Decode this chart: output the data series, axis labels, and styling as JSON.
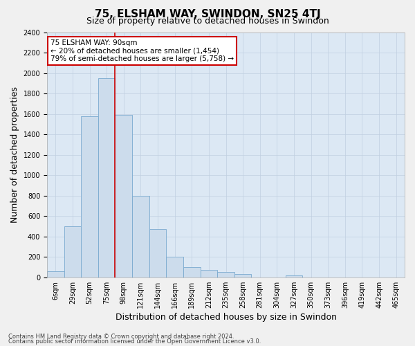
{
  "title": "75, ELSHAM WAY, SWINDON, SN25 4TJ",
  "subtitle": "Size of property relative to detached houses in Swindon",
  "xlabel": "Distribution of detached houses by size in Swindon",
  "ylabel": "Number of detached properties",
  "categories": [
    "6sqm",
    "29sqm",
    "52sqm",
    "75sqm",
    "98sqm",
    "121sqm",
    "144sqm",
    "166sqm",
    "189sqm",
    "212sqm",
    "235sqm",
    "258sqm",
    "281sqm",
    "304sqm",
    "327sqm",
    "350sqm",
    "373sqm",
    "396sqm",
    "419sqm",
    "442sqm",
    "465sqm"
  ],
  "values": [
    60,
    500,
    1580,
    1950,
    1590,
    800,
    470,
    200,
    100,
    75,
    55,
    30,
    0,
    0,
    20,
    0,
    0,
    0,
    0,
    0,
    0
  ],
  "bar_color": "#ccdcec",
  "bar_edge_color": "#7aaacf",
  "background_color": "#dce8f4",
  "grid_color": "#c0cfe0",
  "vline_color": "#cc0000",
  "vline_x": 3.5,
  "annotation_title": "75 ELSHAM WAY: 90sqm",
  "annotation_line1": "← 20% of detached houses are smaller (1,454)",
  "annotation_line2": "79% of semi-detached houses are larger (5,758) →",
  "annotation_box_facecolor": "#ffffff",
  "annotation_box_edgecolor": "#cc0000",
  "ylim": [
    0,
    2400
  ],
  "yticks": [
    0,
    200,
    400,
    600,
    800,
    1000,
    1200,
    1400,
    1600,
    1800,
    2000,
    2200,
    2400
  ],
  "footer1": "Contains HM Land Registry data © Crown copyright and database right 2024.",
  "footer2": "Contains public sector information licensed under the Open Government Licence v3.0.",
  "title_fontsize": 11,
  "subtitle_fontsize": 9,
  "tick_fontsize": 7,
  "ylabel_fontsize": 9,
  "xlabel_fontsize": 9,
  "footer_fontsize": 6,
  "fig_facecolor": "#f0f0f0"
}
